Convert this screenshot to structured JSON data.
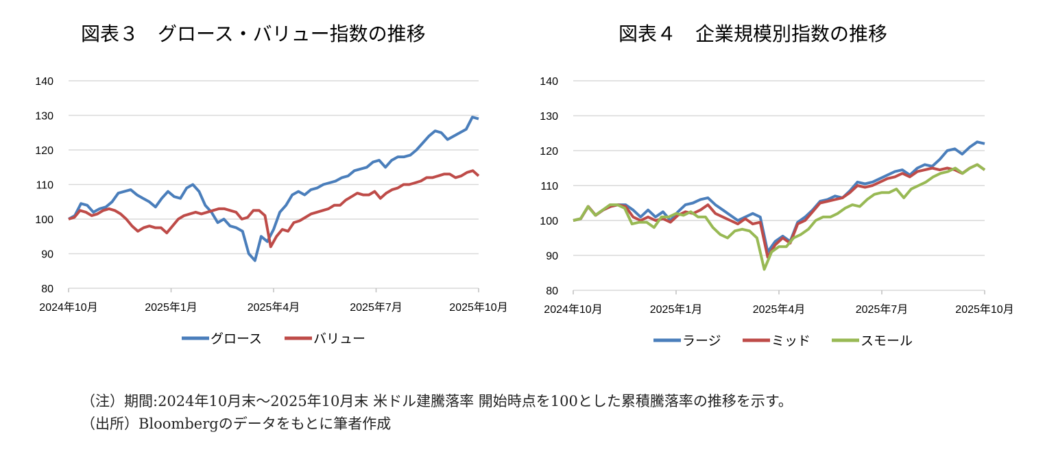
{
  "notes": {
    "line1": "（注）期間:2024年10月末～2025年10月末 米ドル建騰落率 開始時点を100とした累積騰落率の推移を示す。",
    "line2": "（出所）Bloombergのデータをもとに筆者作成"
  },
  "chart_data": [
    {
      "type": "line",
      "title": "図表３　グロース・バリュー指数の推移",
      "ylim": [
        80,
        140
      ],
      "yticks": [
        80,
        90,
        100,
        110,
        120,
        130,
        140
      ],
      "xticks": [
        "2024年10月",
        "2025年1月",
        "2025年4月",
        "2025年7月",
        "2025年10月"
      ],
      "grid": true,
      "legend": "bottom",
      "series": [
        {
          "name": "グロース",
          "color": "#4a7ebb",
          "values": [
            100,
            101,
            104.5,
            104,
            102,
            103,
            103.5,
            105,
            107.5,
            108,
            108.5,
            107,
            106,
            105,
            103.5,
            106,
            108,
            106.5,
            106,
            109,
            110,
            108,
            104,
            102,
            99,
            100,
            98,
            97.5,
            96.5,
            90,
            88,
            95,
            93.5,
            97,
            102,
            104,
            107,
            108,
            107,
            108.5,
            109,
            110,
            110.5,
            111,
            112,
            112.5,
            114,
            114.5,
            115,
            116.5,
            117,
            115,
            117,
            118,
            118,
            118.5,
            120,
            122,
            124,
            125.5,
            125,
            123,
            124,
            125,
            126,
            129.5,
            129
          ]
        },
        {
          "name": "バリュー",
          "color": "#be4b48",
          "values": [
            100,
            100.5,
            102.5,
            102,
            101,
            101.5,
            102.5,
            103,
            102.5,
            101.5,
            100,
            98,
            96.5,
            97.5,
            98,
            97.5,
            97.5,
            96,
            98,
            100,
            101,
            101.5,
            102,
            101.5,
            102,
            102.5,
            103,
            103,
            102.5,
            102,
            100,
            100.5,
            102.5,
            102.5,
            101,
            92,
            95,
            97,
            96.5,
            99,
            99.5,
            100.5,
            101.5,
            102,
            102.5,
            103,
            104,
            104,
            105.5,
            106.5,
            107.5,
            107,
            107,
            108,
            106,
            107.5,
            108.5,
            109,
            110,
            110,
            110.5,
            111,
            112,
            112,
            112.5,
            113,
            113,
            112,
            112.5,
            113.5,
            114,
            112.5
          ]
        }
      ]
    },
    {
      "type": "line",
      "title": "図表４　企業規模別指数の推移",
      "ylim": [
        80,
        140
      ],
      "yticks": [
        80,
        90,
        100,
        110,
        120,
        130,
        140
      ],
      "xticks": [
        "2024年10月",
        "2025年1月",
        "2025年4月",
        "2025年7月",
        "2025年10月"
      ],
      "grid": true,
      "legend": "bottom",
      "series": [
        {
          "name": "ラージ",
          "color": "#4a7ebb",
          "values": [
            100,
            100.5,
            104,
            101.5,
            103,
            104,
            104.5,
            104.5,
            103,
            101,
            103,
            101,
            102.5,
            100,
            102.5,
            104.5,
            105,
            106,
            106.5,
            104.5,
            103,
            101.5,
            100,
            101,
            102,
            101,
            91,
            94,
            95.5,
            94,
            99.5,
            101,
            103,
            105.5,
            106,
            107,
            106.5,
            108.5,
            111,
            110.5,
            111,
            112,
            113,
            114,
            114.5,
            113,
            115,
            116,
            115.5,
            117.5,
            120,
            120.5,
            119,
            121,
            122.5,
            122
          ]
        },
        {
          "name": "ミッド",
          "color": "#be4b48",
          "values": [
            100,
            100.5,
            104,
            101.5,
            103,
            104,
            104.5,
            104,
            101,
            100,
            101,
            100,
            100.5,
            99.5,
            101.5,
            102.5,
            102,
            103,
            104.5,
            102,
            101,
            100,
            99,
            100.5,
            99,
            99.5,
            89.5,
            93,
            95,
            93.5,
            99,
            100,
            102.5,
            105,
            105.5,
            106,
            106.5,
            108,
            110,
            109.5,
            110,
            111,
            112,
            112.5,
            113.5,
            112.5,
            114,
            114.5,
            115,
            114.5,
            115,
            114.5,
            113.5,
            115,
            116,
            114.5
          ]
        },
        {
          "name": "スモール",
          "color": "#98b954",
          "values": [
            100,
            100.5,
            104,
            101.5,
            103,
            104.5,
            104.5,
            103.5,
            99,
            99.5,
            99.5,
            98,
            101,
            101,
            102,
            101.5,
            102.5,
            101,
            101,
            98,
            96,
            95,
            97,
            97.5,
            97,
            95,
            86,
            91,
            92.5,
            92.5,
            95,
            96,
            97.5,
            100,
            101,
            101,
            102,
            103.5,
            104.5,
            104,
            106,
            107.5,
            108,
            108,
            109,
            106.5,
            109,
            110,
            111,
            112.5,
            113.5,
            114,
            115,
            113.5,
            115,
            116,
            114.5
          ]
        }
      ]
    }
  ]
}
